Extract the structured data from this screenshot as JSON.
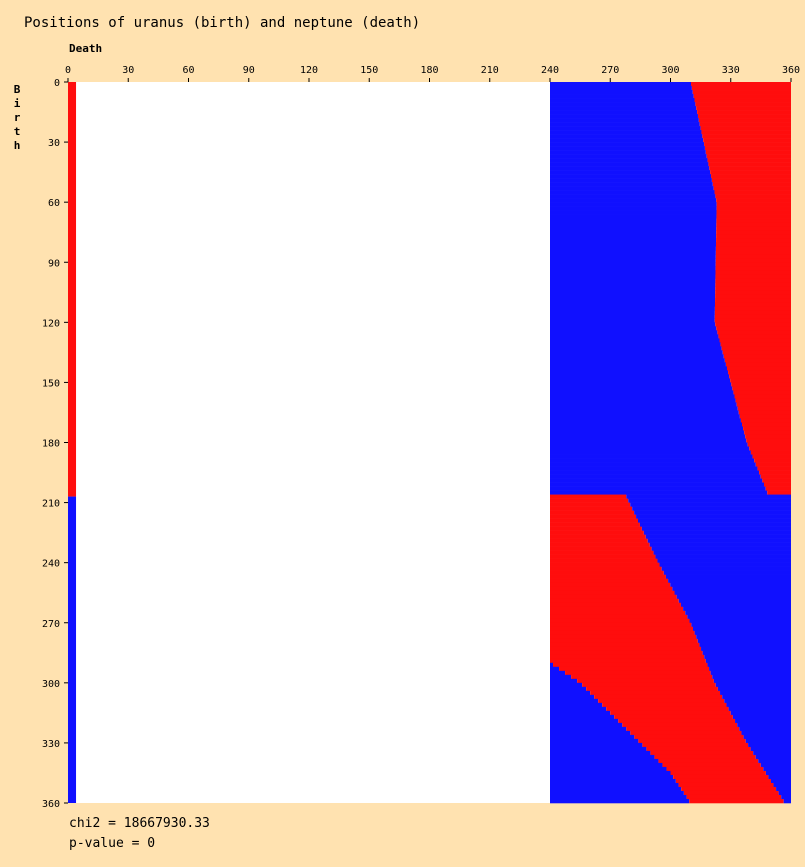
{
  "chart_data": {
    "type": "heatmap",
    "title": "Positions of uranus (birth) and neptune (death)",
    "xlabel": "Death",
    "ylabel": "Birth",
    "xlim": [
      0,
      360
    ],
    "ylim": [
      0,
      360
    ],
    "x_ticks": [
      0,
      30,
      60,
      90,
      120,
      150,
      180,
      210,
      240,
      270,
      300,
      330,
      360
    ],
    "y_ticks": [
      0,
      30,
      60,
      90,
      120,
      150,
      180,
      210,
      240,
      270,
      300,
      330,
      360
    ],
    "colors": {
      "above_expected": "#ff0d0d",
      "below_expected": "#1010ff",
      "neutral": "#ffffff"
    },
    "stats": {
      "chi2": "chi2 = 18667930.33",
      "pvalue": "p-value = 0"
    },
    "regions": [
      {
        "x": [
          0,
          4
        ],
        "y": [
          0,
          207
        ],
        "level": 1
      },
      {
        "x": [
          0,
          4
        ],
        "y": [
          207,
          360
        ],
        "level": -1
      },
      {
        "x": [
          240,
          360
        ],
        "y": [
          0,
          207
        ],
        "level": -1,
        "boundary_x_at_y": [
          [
            0,
            310
          ],
          [
            60,
            323
          ],
          [
            120,
            322
          ],
          [
            180,
            338
          ],
          [
            207,
            349
          ]
        ],
        "upper_level": 1
      },
      {
        "x": [
          240,
          360
        ],
        "y": [
          207,
          360
        ],
        "level": 1,
        "boundary_x_at_y": [
          [
            207,
            278
          ],
          [
            240,
            294
          ],
          [
            270,
            310
          ],
          [
            300,
            322
          ],
          [
            330,
            338
          ],
          [
            360,
            357
          ]
        ],
        "upper_level": -1
      },
      {
        "x": [
          240,
          360
        ],
        "y": [
          290,
          360
        ],
        "level": -1,
        "lower_boundary_x_at_y": [
          [
            290,
            240
          ],
          [
            300,
            255
          ],
          [
            320,
            275
          ],
          [
            345,
            300
          ],
          [
            360,
            310
          ]
        ]
      }
    ]
  }
}
